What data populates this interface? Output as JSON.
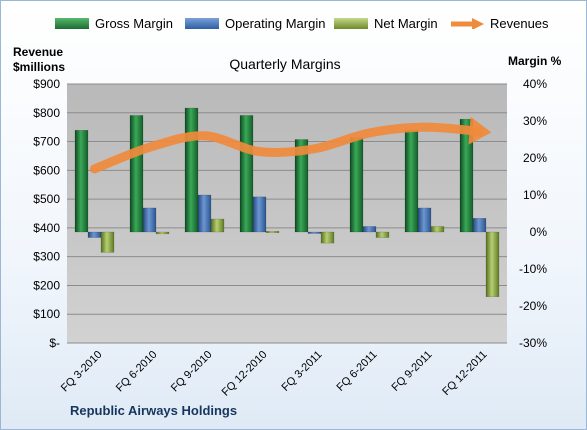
{
  "legend": {
    "gross": "Gross Margin",
    "operating": "Operating Margin",
    "net": "Net Margin",
    "revenues": "Revenues"
  },
  "left_axis_title_line1": "Revenue",
  "left_axis_title_line2": "$millions",
  "right_axis_title": "Margin %",
  "footer": "Republic Airways Holdings",
  "colors": {
    "gross": "#1f7a3a",
    "operating": "#3a6bb5",
    "net": "#8aa53f",
    "revenues": "#f08a3c"
  },
  "chart_data": {
    "type": "bar",
    "title": "Quarterly Margins",
    "categories": [
      "FQ 3-2010",
      "FQ 6-2010",
      "FQ 9-2010",
      "FQ 12-2010",
      "FQ 3-2011",
      "FQ 6-2011",
      "FQ 9-2011",
      "FQ 12-2011"
    ],
    "left_axis": {
      "ylim": [
        0,
        900
      ],
      "ticks": [
        {
          "value": 0,
          "label": "$-"
        },
        {
          "value": 100,
          "label": "$100"
        },
        {
          "value": 200,
          "label": "$200"
        },
        {
          "value": 300,
          "label": "$300"
        },
        {
          "value": 400,
          "label": "$400"
        },
        {
          "value": 500,
          "label": "$500"
        },
        {
          "value": 600,
          "label": "$600"
        },
        {
          "value": 700,
          "label": "$700"
        },
        {
          "value": 800,
          "label": "$800"
        },
        {
          "value": 900,
          "label": "$900"
        }
      ]
    },
    "right_axis": {
      "ylim": [
        -30,
        40
      ],
      "ticks": [
        {
          "value": -30,
          "label": "-30%"
        },
        {
          "value": -20,
          "label": "-20%"
        },
        {
          "value": -10,
          "label": "-10%"
        },
        {
          "value": 0,
          "label": "0%"
        },
        {
          "value": 10,
          "label": "10%"
        },
        {
          "value": 20,
          "label": "20%"
        },
        {
          "value": 30,
          "label": "30%"
        },
        {
          "value": 40,
          "label": "40%"
        }
      ]
    },
    "series": [
      {
        "name": "Gross Margin",
        "axis": "right",
        "kind": "bar",
        "values": [
          27.5,
          31.5,
          33.5,
          31.5,
          25,
          25.5,
          27.5,
          30.5
        ]
      },
      {
        "name": "Operating Margin",
        "axis": "right",
        "kind": "bar",
        "values": [
          -1.5,
          6.5,
          10,
          9.5,
          -0.3,
          1.5,
          6.5,
          3.7
        ]
      },
      {
        "name": "Net Margin",
        "axis": "right",
        "kind": "bar",
        "values": [
          -5.5,
          -0.5,
          3.5,
          0.2,
          -3,
          -1.5,
          1.5,
          -17.5
        ]
      },
      {
        "name": "Revenues",
        "axis": "left",
        "kind": "line",
        "values": [
          605,
          680,
          720,
          665,
          675,
          730,
          750,
          735
        ]
      }
    ],
    "grid": true,
    "legend_position": "top"
  }
}
